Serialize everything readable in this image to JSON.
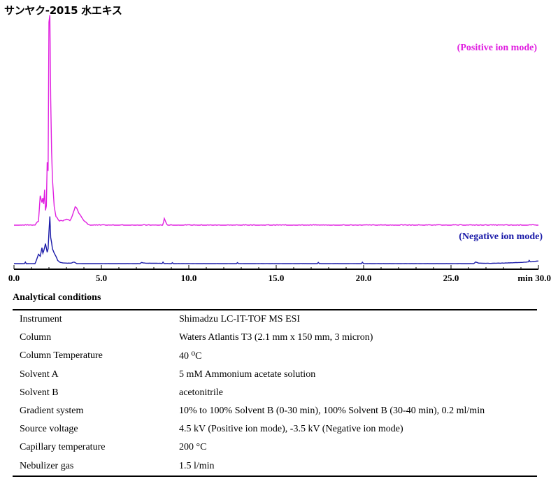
{
  "title": "サンヤク-2015 水エキス",
  "chart_data": {
    "type": "line",
    "x_ticks": [
      "0.0",
      "5.0",
      "10.0",
      "15.0",
      "20.0",
      "25.0",
      "min 30.0"
    ],
    "xlim": [
      0,
      30
    ],
    "x_unit": "min",
    "series": [
      {
        "name": "(Positive ion mode)",
        "color": "#e020e0",
        "points": [
          [
            0,
            0
          ],
          [
            1.2,
            0
          ],
          [
            1.4,
            2
          ],
          [
            1.5,
            14
          ],
          [
            1.6,
            11
          ],
          [
            1.65,
            13
          ],
          [
            1.7,
            10
          ],
          [
            1.75,
            17
          ],
          [
            1.8,
            7
          ],
          [
            1.85,
            9
          ],
          [
            1.9,
            30
          ],
          [
            1.95,
            26
          ],
          [
            2.0,
            97
          ],
          [
            2.05,
            100
          ],
          [
            2.1,
            60
          ],
          [
            2.15,
            35
          ],
          [
            2.2,
            22
          ],
          [
            2.3,
            9
          ],
          [
            2.4,
            4
          ],
          [
            2.6,
            2
          ],
          [
            2.8,
            2
          ],
          [
            3.0,
            3
          ],
          [
            3.2,
            2
          ],
          [
            3.4,
            6
          ],
          [
            3.5,
            9
          ],
          [
            3.6,
            8
          ],
          [
            3.7,
            6
          ],
          [
            3.8,
            5
          ],
          [
            4.0,
            2
          ],
          [
            4.3,
            0
          ],
          [
            5.0,
            0
          ],
          [
            8.5,
            0
          ],
          [
            8.6,
            3
          ],
          [
            8.7,
            1
          ],
          [
            8.8,
            0
          ],
          [
            30,
            0
          ]
        ]
      },
      {
        "name": "(Negative ion mode)",
        "color": "#1a1aa8",
        "points": [
          [
            0,
            0
          ],
          [
            0.6,
            0
          ],
          [
            0.65,
            3
          ],
          [
            0.7,
            0
          ],
          [
            1.2,
            0
          ],
          [
            1.3,
            8
          ],
          [
            1.4,
            18
          ],
          [
            1.5,
            14
          ],
          [
            1.6,
            30
          ],
          [
            1.65,
            20
          ],
          [
            1.7,
            24
          ],
          [
            1.8,
            38
          ],
          [
            1.9,
            22
          ],
          [
            1.95,
            28
          ],
          [
            2.0,
            60
          ],
          [
            2.05,
            90
          ],
          [
            2.1,
            50
          ],
          [
            2.15,
            40
          ],
          [
            2.2,
            28
          ],
          [
            2.3,
            20
          ],
          [
            2.4,
            14
          ],
          [
            2.5,
            6
          ],
          [
            2.6,
            3
          ],
          [
            2.8,
            1
          ],
          [
            3.3,
            1
          ],
          [
            3.4,
            3
          ],
          [
            3.5,
            2
          ],
          [
            3.6,
            0
          ],
          [
            7.2,
            0
          ],
          [
            7.3,
            2
          ],
          [
            7.4,
            1
          ],
          [
            9.0,
            0
          ],
          [
            26.3,
            0
          ],
          [
            26.4,
            3
          ],
          [
            26.6,
            1
          ],
          [
            27.0,
            0.5
          ],
          [
            28,
            1
          ],
          [
            28.8,
            2
          ],
          [
            29.3,
            3
          ],
          [
            29.7,
            4
          ],
          [
            30,
            5
          ]
        ]
      }
    ]
  },
  "conditions": {
    "heading": "Analytical conditions",
    "rows": [
      {
        "key": "Instrument",
        "value": "Shimadzu LC-IT-TOF MS ESI"
      },
      {
        "key": "Column",
        "value": "Waters Atlantis T3 (2.1 mm x 150 mm, 3 micron)"
      },
      {
        "key": "Column Temperature",
        "value": "40 ⁰C"
      },
      {
        "key": "Solvent A",
        "value": "5 mM Ammonium acetate solution"
      },
      {
        "key": "Solvent B",
        "value": "acetonitrile"
      },
      {
        "key": "Gradient system",
        "value": "10% to 100% Solvent B (0-30 min), 100% Solvent B (30-40 min), 0.2 ml/min"
      },
      {
        "key": "Source voltage",
        "value": "4.5 kV (Positive ion mode), -3.5 kV (Negative ion mode)"
      },
      {
        "key": "Capillary temperature",
        "value": "200 °C"
      },
      {
        "key": "Nebulizer gas",
        "value": "1.5 l/min"
      }
    ]
  }
}
